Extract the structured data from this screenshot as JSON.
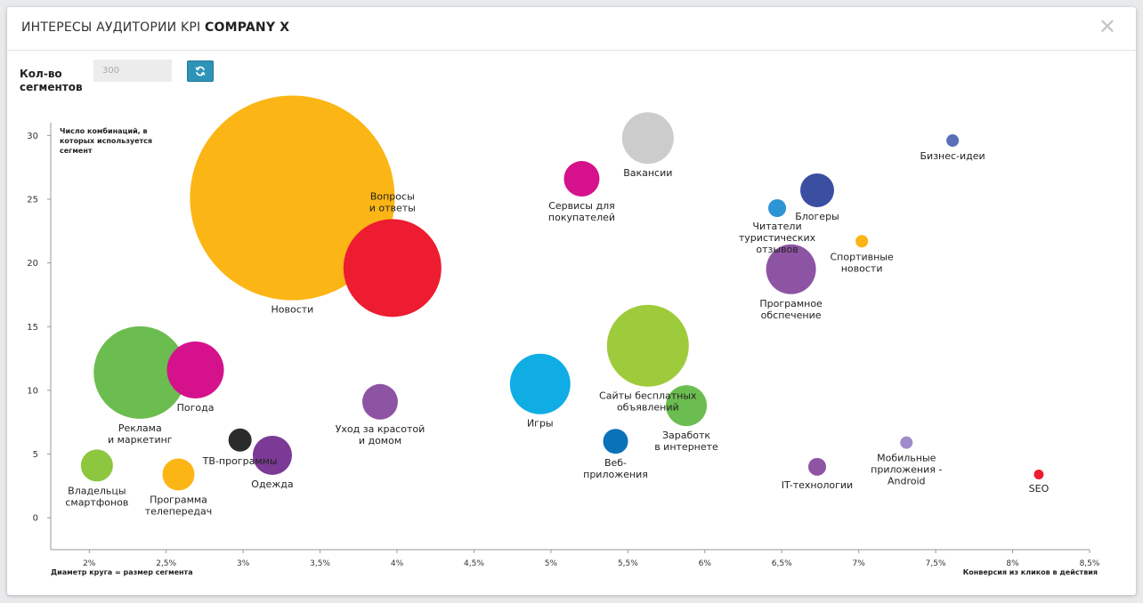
{
  "modal": {
    "title_prefix": "ИНТЕРЕСЫ АУДИТОРИИ KPI",
    "title_bold": "COMPANY X",
    "close_icon": "close-icon"
  },
  "controls": {
    "segments_label": "Кол-во сегментов",
    "segments_value": "300",
    "refresh_icon": "refresh-icon",
    "refresh_color": "#2d94b8"
  },
  "chart_data": {
    "type": "scatter",
    "title": "",
    "xlabel": "Конверсия из кликов в действия",
    "ylabel": "Число комбинаций, в которых используется сегмент",
    "size_label": "Диаметр круга = размер сегмента",
    "xlim": [
      1.75,
      8.5
    ],
    "ylim": [
      -2.5,
      31
    ],
    "x_ticks": [
      2,
      2.5,
      3,
      3.5,
      4,
      4.5,
      5,
      5.5,
      6,
      6.5,
      7,
      7.5,
      8,
      8.5
    ],
    "x_tick_labels": [
      "2%",
      "2,5%",
      "3%",
      "3,5%",
      "4%",
      "4,5%",
      "5%",
      "5,5%",
      "6%",
      "6,5%",
      "7%",
      "7,5%",
      "8%",
      "8,5%"
    ],
    "y_ticks": [
      0,
      5,
      10,
      15,
      20,
      25,
      30
    ],
    "y_tick_labels": [
      "0",
      "5",
      "10",
      "15",
      "20",
      "25",
      "30"
    ],
    "grid": false,
    "legend": "none",
    "points": [
      {
        "label": "Новости",
        "x": 3.32,
        "y": 25.1,
        "size": 230,
        "color": "#fbb515"
      },
      {
        "label": "Вопросы\nи ответы",
        "x": 3.97,
        "y": 19.6,
        "size": 110,
        "color": "#ee1c31"
      },
      {
        "label": "Реклама\nи маркетинг",
        "x": 2.33,
        "y": 11.4,
        "size": 104,
        "color": "#6cbd4f"
      },
      {
        "label": "Погода",
        "x": 2.69,
        "y": 11.6,
        "size": 64,
        "color": "#d5128b"
      },
      {
        "label": "Владельцы\nсмартфонов",
        "x": 2.05,
        "y": 4.1,
        "size": 36,
        "color": "#8dc63f"
      },
      {
        "label": "Программа\nтелепередач",
        "x": 2.58,
        "y": 3.4,
        "size": 36,
        "color": "#fbb515"
      },
      {
        "label": "ТВ-программы",
        "x": 2.98,
        "y": 6.1,
        "size": 26,
        "color": "#2b2b2b"
      },
      {
        "label": "Одежда",
        "x": 3.19,
        "y": 4.9,
        "size": 44,
        "color": "#7b3a96"
      },
      {
        "label": "Уход за красотой\nи домом",
        "x": 3.89,
        "y": 9.1,
        "size": 40,
        "color": "#8e54a4"
      },
      {
        "label": "Игры",
        "x": 4.93,
        "y": 10.5,
        "size": 68,
        "color": "#10ade5"
      },
      {
        "label": "Сервисы для\nпокупателей",
        "x": 5.2,
        "y": 26.6,
        "size": 40,
        "color": "#d5128b"
      },
      {
        "label": "Вакансии",
        "x": 5.63,
        "y": 29.8,
        "size": 58,
        "color": "#cccccc"
      },
      {
        "label": "Сайты бесплатных\nобъявлений",
        "x": 5.63,
        "y": 13.5,
        "size": 92,
        "color": "#9ecb3b"
      },
      {
        "label": "Заработк\nв интернете",
        "x": 5.88,
        "y": 8.8,
        "size": 46,
        "color": "#6cbd4f"
      },
      {
        "label": "Веб-\nприложения",
        "x": 5.42,
        "y": 6.0,
        "size": 28,
        "color": "#0a72b8"
      },
      {
        "label": "Читатели\nтуристических\nотзывов",
        "x": 6.47,
        "y": 24.3,
        "size": 20,
        "color": "#2d94d6"
      },
      {
        "label": "Блогеры",
        "x": 6.73,
        "y": 25.7,
        "size": 38,
        "color": "#3a4ea2"
      },
      {
        "label": "Спортивные\nновости",
        "x": 7.02,
        "y": 21.7,
        "size": 14,
        "color": "#fbb515"
      },
      {
        "label": "Програмное\nобспечение",
        "x": 6.56,
        "y": 19.5,
        "size": 56,
        "color": "#8e54a4"
      },
      {
        "label": "Бизнес-идеи",
        "x": 7.61,
        "y": 29.6,
        "size": 14,
        "color": "#5b6fb8"
      },
      {
        "label": "Мобильные\nприложения -\nAndroid",
        "x": 7.31,
        "y": 5.9,
        "size": 14,
        "color": "#a08ccc"
      },
      {
        "label": "IT-технологии",
        "x": 6.73,
        "y": 4.0,
        "size": 20,
        "color": "#8e54a4"
      },
      {
        "label": "SEO",
        "x": 8.17,
        "y": 3.4,
        "size": 11,
        "color": "#ee1c31"
      }
    ]
  }
}
